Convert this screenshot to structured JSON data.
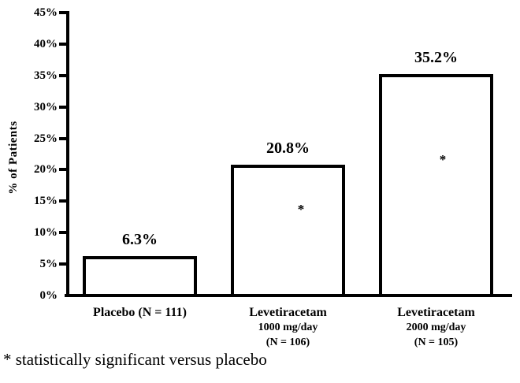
{
  "chart_data": {
    "type": "bar",
    "title": "",
    "xlabel": "",
    "ylabel": "% of Patients",
    "ylim": [
      0,
      45
    ],
    "ytick_step": 5,
    "yticks": [
      0,
      5,
      10,
      15,
      20,
      25,
      30,
      35,
      40,
      45
    ],
    "ytick_labels": [
      "0%",
      "5%",
      "10%",
      "15%",
      "20%",
      "25%",
      "30%",
      "35%",
      "40%",
      "45%"
    ],
    "grid": false,
    "legend": null,
    "bars": [
      {
        "category_lines": [
          "Placebo (N = 111)"
        ],
        "value": 6.3,
        "value_label": "6.3%",
        "significant": false
      },
      {
        "category_lines": [
          "Levetiracetam",
          "1000 mg/day",
          "(N = 106)"
        ],
        "value": 20.8,
        "value_label": "20.8%",
        "significant": true
      },
      {
        "category_lines": [
          "Levetiracetam",
          "2000 mg/day",
          "(N = 105)"
        ],
        "value": 35.2,
        "value_label": "35.2%",
        "significant": true
      }
    ],
    "significance_marker": "*",
    "footnote": "* statistically significant versus placebo",
    "colors": {
      "background": "#ffffff",
      "bar_fill": "#ffffff",
      "bar_border": "#000000",
      "axis": "#000000",
      "text": "#000000"
    }
  }
}
